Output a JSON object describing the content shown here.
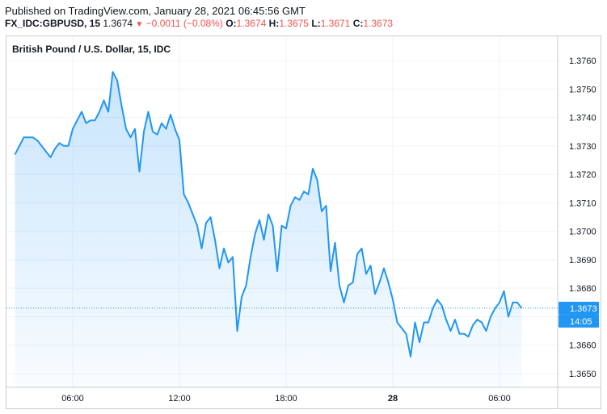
{
  "header": {
    "published": "Published on TradingView.com, January 28, 2021 06:45:56 GMT",
    "symbol": "FX_IDC:GBPUSD, 15",
    "last": "1.3674",
    "change_icon": "triangle-down-icon",
    "change": "−0.0011 (−0.08%)",
    "o_label": "O:",
    "o_value": "1.3674",
    "h_label": "H:",
    "h_value": "1.3675",
    "l_label": "L:",
    "l_value": "1.3671",
    "c_label": "C:",
    "c_value": "1.3673",
    "negative_color": "#ef5350"
  },
  "chart_data": {
    "type": "area",
    "title": "British Pound / U.S. Dollar, 15, IDC",
    "line_color": "#2196f3",
    "grid": true,
    "ylim": [
      1.3645,
      1.3766
    ],
    "y_ticks": [
      "1.3760",
      "1.3750",
      "1.3740",
      "1.3730",
      "1.3720",
      "1.3710",
      "1.3700",
      "1.3690",
      "1.3680",
      "1.3670",
      "1.3660",
      "1.3650"
    ],
    "x_ticks": [
      {
        "label": "06:00",
        "t": 6,
        "bold": false
      },
      {
        "label": "12:00",
        "t": 12,
        "bold": false
      },
      {
        "label": "18:00",
        "t": 18,
        "bold": false
      },
      {
        "label": "28",
        "t": 24,
        "bold": true
      },
      {
        "label": "06:00",
        "t": 30,
        "bold": false
      }
    ],
    "xlim": [
      2.75,
      34.0
    ],
    "series": [
      {
        "points": [
          [
            2.75,
            1.3727
          ],
          [
            3.0,
            1.373
          ],
          [
            3.25,
            1.3733
          ],
          [
            3.75,
            1.3733
          ],
          [
            4.0,
            1.3732
          ],
          [
            4.25,
            1.373
          ],
          [
            4.5,
            1.3728
          ],
          [
            4.75,
            1.3726
          ],
          [
            5.0,
            1.3729
          ],
          [
            5.25,
            1.3731
          ],
          [
            5.5,
            1.373
          ],
          [
            5.75,
            1.373
          ],
          [
            6.0,
            1.3736
          ],
          [
            6.25,
            1.3739
          ],
          [
            6.5,
            1.3742
          ],
          [
            6.75,
            1.3738
          ],
          [
            7.0,
            1.3739
          ],
          [
            7.25,
            1.3739
          ],
          [
            7.5,
            1.3742
          ],
          [
            7.75,
            1.3746
          ],
          [
            8.0,
            1.3742
          ],
          [
            8.25,
            1.3756
          ],
          [
            8.5,
            1.3753
          ],
          [
            8.75,
            1.3744
          ],
          [
            9.0,
            1.3736
          ],
          [
            9.25,
            1.3733
          ],
          [
            9.5,
            1.3736
          ],
          [
            9.75,
            1.3721
          ],
          [
            10.0,
            1.3735
          ],
          [
            10.25,
            1.3742
          ],
          [
            10.5,
            1.3735
          ],
          [
            10.75,
            1.3734
          ],
          [
            11.0,
            1.3738
          ],
          [
            11.25,
            1.3736
          ],
          [
            11.5,
            1.3741
          ],
          [
            11.75,
            1.3736
          ],
          [
            12.0,
            1.3732
          ],
          [
            12.25,
            1.3713
          ],
          [
            12.5,
            1.371
          ],
          [
            12.75,
            1.3706
          ],
          [
            13.0,
            1.3702
          ],
          [
            13.25,
            1.3694
          ],
          [
            13.5,
            1.3703
          ],
          [
            13.75,
            1.3705
          ],
          [
            14.0,
            1.3697
          ],
          [
            14.25,
            1.3687
          ],
          [
            14.5,
            1.3694
          ],
          [
            14.75,
            1.3689
          ],
          [
            15.0,
            1.3691
          ],
          [
            15.25,
            1.3665
          ],
          [
            15.5,
            1.3677
          ],
          [
            15.75,
            1.3681
          ],
          [
            16.0,
            1.3691
          ],
          [
            16.25,
            1.3699
          ],
          [
            16.5,
            1.3704
          ],
          [
            16.75,
            1.3697
          ],
          [
            17.0,
            1.3706
          ],
          [
            17.25,
            1.3702
          ],
          [
            17.5,
            1.3686
          ],
          [
            17.75,
            1.3702
          ],
          [
            18.0,
            1.3701
          ],
          [
            18.25,
            1.3709
          ],
          [
            18.5,
            1.3712
          ],
          [
            18.75,
            1.3711
          ],
          [
            19.0,
            1.3714
          ],
          [
            19.25,
            1.3713
          ],
          [
            19.5,
            1.3722
          ],
          [
            19.75,
            1.3718
          ],
          [
            20.0,
            1.3707
          ],
          [
            20.25,
            1.3709
          ],
          [
            20.5,
            1.3686
          ],
          [
            20.75,
            1.3696
          ],
          [
            21.0,
            1.3681
          ],
          [
            21.25,
            1.3675
          ],
          [
            21.5,
            1.3681
          ],
          [
            21.75,
            1.3682
          ],
          [
            22.0,
            1.3692
          ],
          [
            22.25,
            1.3694
          ],
          [
            22.5,
            1.3685
          ],
          [
            22.75,
            1.3688
          ],
          [
            23.0,
            1.3678
          ],
          [
            23.25,
            1.3682
          ],
          [
            23.5,
            1.3687
          ],
          [
            23.75,
            1.3682
          ],
          [
            24.0,
            1.3676
          ],
          [
            24.25,
            1.3668
          ],
          [
            24.5,
            1.3666
          ],
          [
            24.75,
            1.3664
          ],
          [
            25.0,
            1.3656
          ],
          [
            25.25,
            1.3668
          ],
          [
            25.5,
            1.3661
          ],
          [
            25.75,
            1.3668
          ],
          [
            26.0,
            1.3668
          ],
          [
            26.25,
            1.3673
          ],
          [
            26.5,
            1.3676
          ],
          [
            26.75,
            1.3674
          ],
          [
            27.0,
            1.3669
          ],
          [
            27.25,
            1.3665
          ],
          [
            27.5,
            1.3669
          ],
          [
            27.75,
            1.3664
          ],
          [
            28.0,
            1.3664
          ],
          [
            28.25,
            1.3663
          ],
          [
            28.5,
            1.3667
          ],
          [
            28.75,
            1.3669
          ],
          [
            29.0,
            1.3668
          ],
          [
            29.25,
            1.3665
          ],
          [
            29.5,
            1.367
          ],
          [
            29.75,
            1.3673
          ],
          [
            30.0,
            1.3675
          ],
          [
            30.25,
            1.3679
          ],
          [
            30.5,
            1.367
          ],
          [
            30.75,
            1.3675
          ],
          [
            31.0,
            1.3675
          ],
          [
            31.25,
            1.3673
          ]
        ]
      }
    ],
    "last_price": {
      "value": 1.3673,
      "label": "1.3673",
      "countdown": "14:05",
      "color": "#2196f3"
    }
  }
}
